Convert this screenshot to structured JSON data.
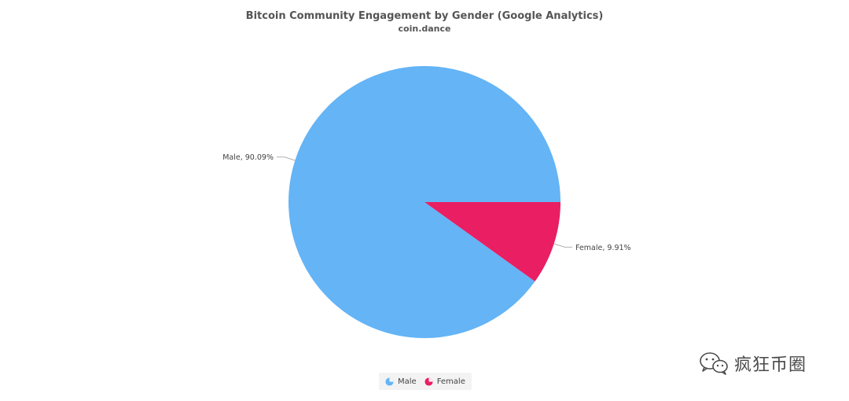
{
  "chart_data": {
    "type": "pie",
    "title": "Bitcoin Community Engagement by Gender (Google Analytics)",
    "subtitle": "coin.dance",
    "slices": [
      {
        "name": "Male",
        "value": 90.09,
        "label": "Male, 90.09%",
        "color": "#64b4f6"
      },
      {
        "name": "Female",
        "value": 9.91,
        "label": "Female, 9.91%",
        "color": "#e91e63"
      }
    ],
    "legend": {
      "placement": "bottom-center",
      "items": [
        "Male",
        "Female"
      ]
    }
  },
  "watermark": {
    "text": "疯狂币圈",
    "icon": "wechat-icon"
  }
}
